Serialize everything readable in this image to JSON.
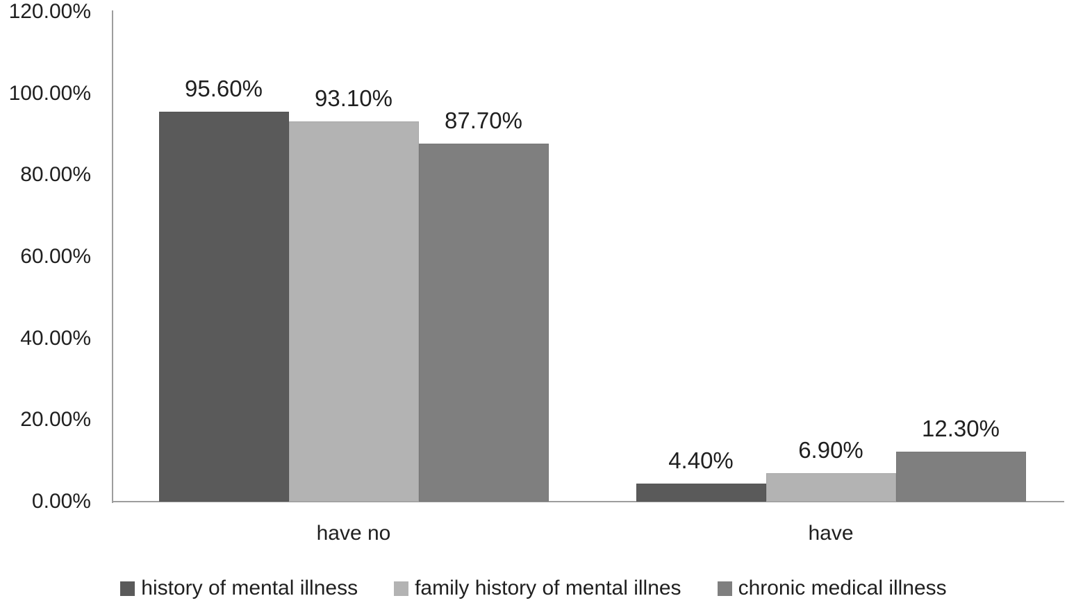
{
  "chart_data": {
    "type": "bar",
    "title": "",
    "xlabel": "",
    "ylabel": "",
    "categories": [
      "have no",
      "have"
    ],
    "series": [
      {
        "name": "history of mental illness",
        "color": "#5a5a5a",
        "values": [
          95.6,
          4.4
        ],
        "value_labels": [
          "95.60%",
          "4.40%"
        ]
      },
      {
        "name": "family history of mental illnes",
        "color": "#b3b3b3",
        "values": [
          93.1,
          6.9
        ],
        "value_labels": [
          "93.10%",
          "6.90%"
        ]
      },
      {
        "name": "chronic medical illness",
        "color": "#7f7f7f",
        "values": [
          87.7,
          12.3
        ],
        "value_labels": [
          "87.70%",
          "12.30%"
        ]
      }
    ],
    "ylim": [
      0,
      120
    ],
    "yticks": [
      0,
      20,
      40,
      60,
      80,
      100,
      120
    ],
    "ytick_labels": [
      "0.00%",
      "20.00%",
      "40.00%",
      "60.00%",
      "80.00%",
      "100.00%",
      "120.00%"
    ],
    "grid": false,
    "legend_position": "bottom",
    "colors": {
      "axis_line": "#9d9d9d",
      "text": "#1f1f1f",
      "background": "#ffffff"
    }
  }
}
